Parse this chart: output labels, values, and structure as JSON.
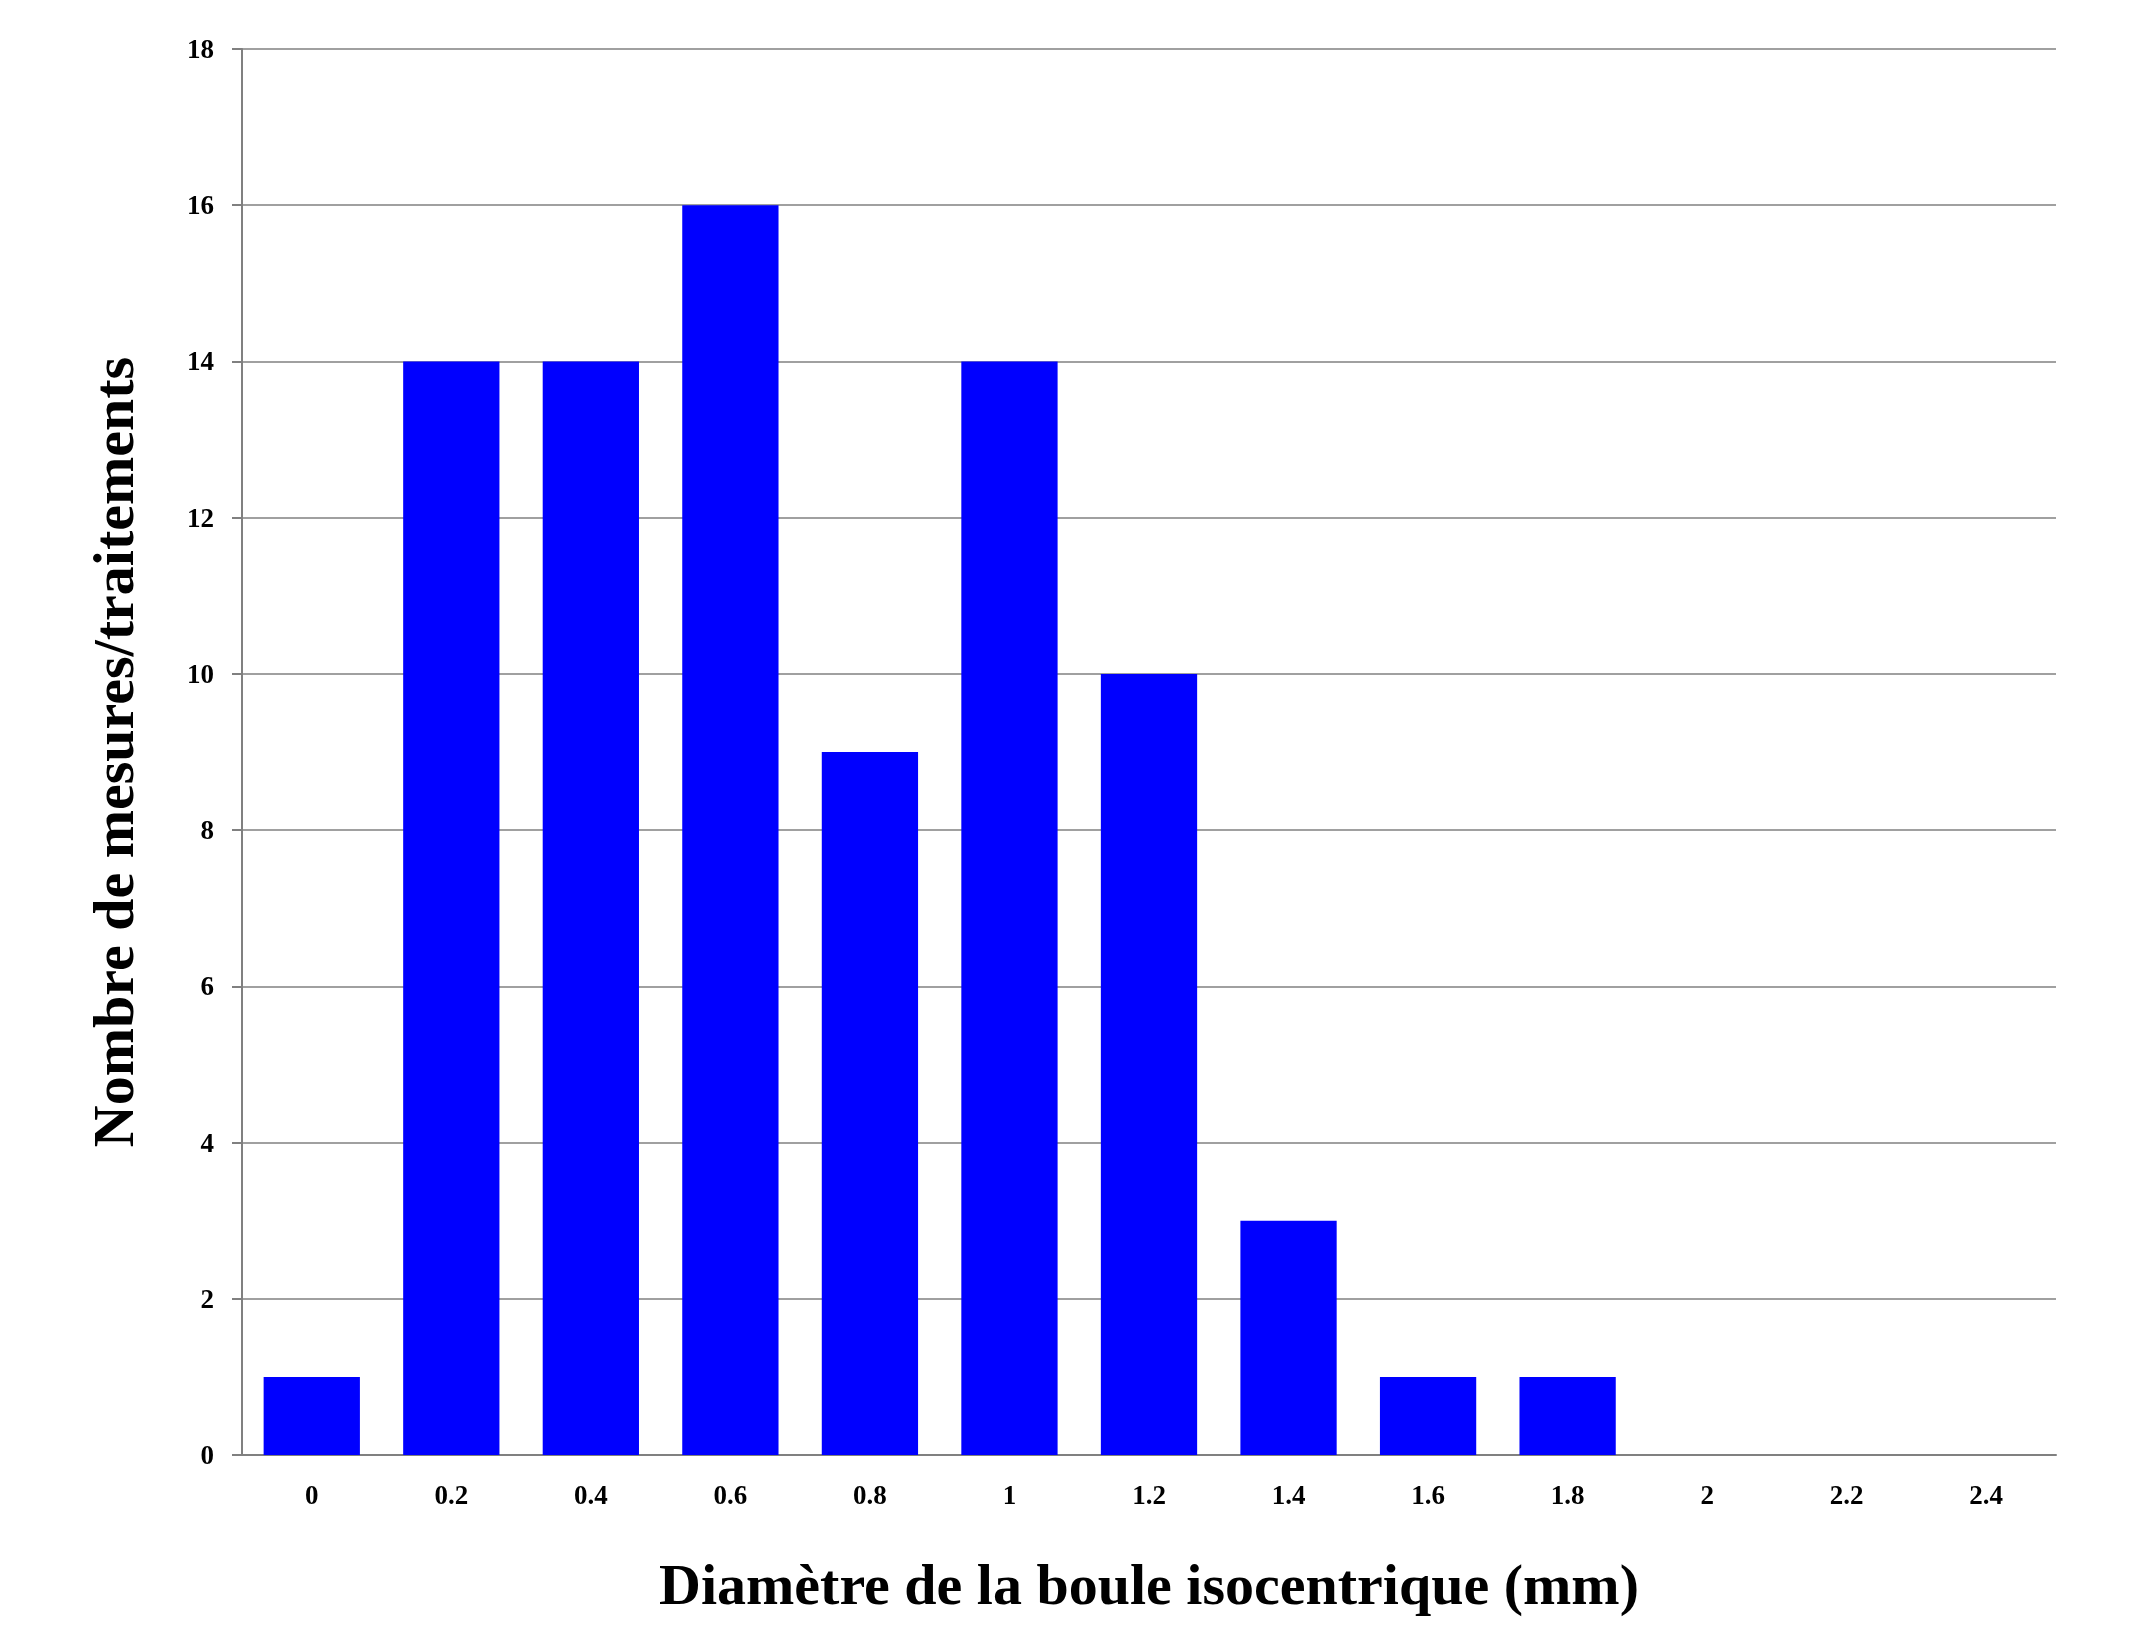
{
  "chart_data": {
    "type": "bar",
    "xlabel": "Diamètre de la boule isocentrique (mm)",
    "ylabel": "Nombre de mesures/traitements",
    "categories": [
      "0",
      "0.2",
      "0.4",
      "0.6",
      "0.8",
      "1",
      "1.2",
      "1.4",
      "1.6",
      "1.8",
      "2",
      "2.2",
      "2.4"
    ],
    "values": [
      1,
      14,
      14,
      16,
      9,
      14,
      10,
      3,
      1,
      1,
      0,
      0,
      0
    ],
    "color": "#0000ff",
    "ylim": [
      0,
      18
    ],
    "yticks": [
      0,
      2,
      4,
      6,
      8,
      10,
      12,
      14,
      16,
      18
    ],
    "grid": "y"
  }
}
